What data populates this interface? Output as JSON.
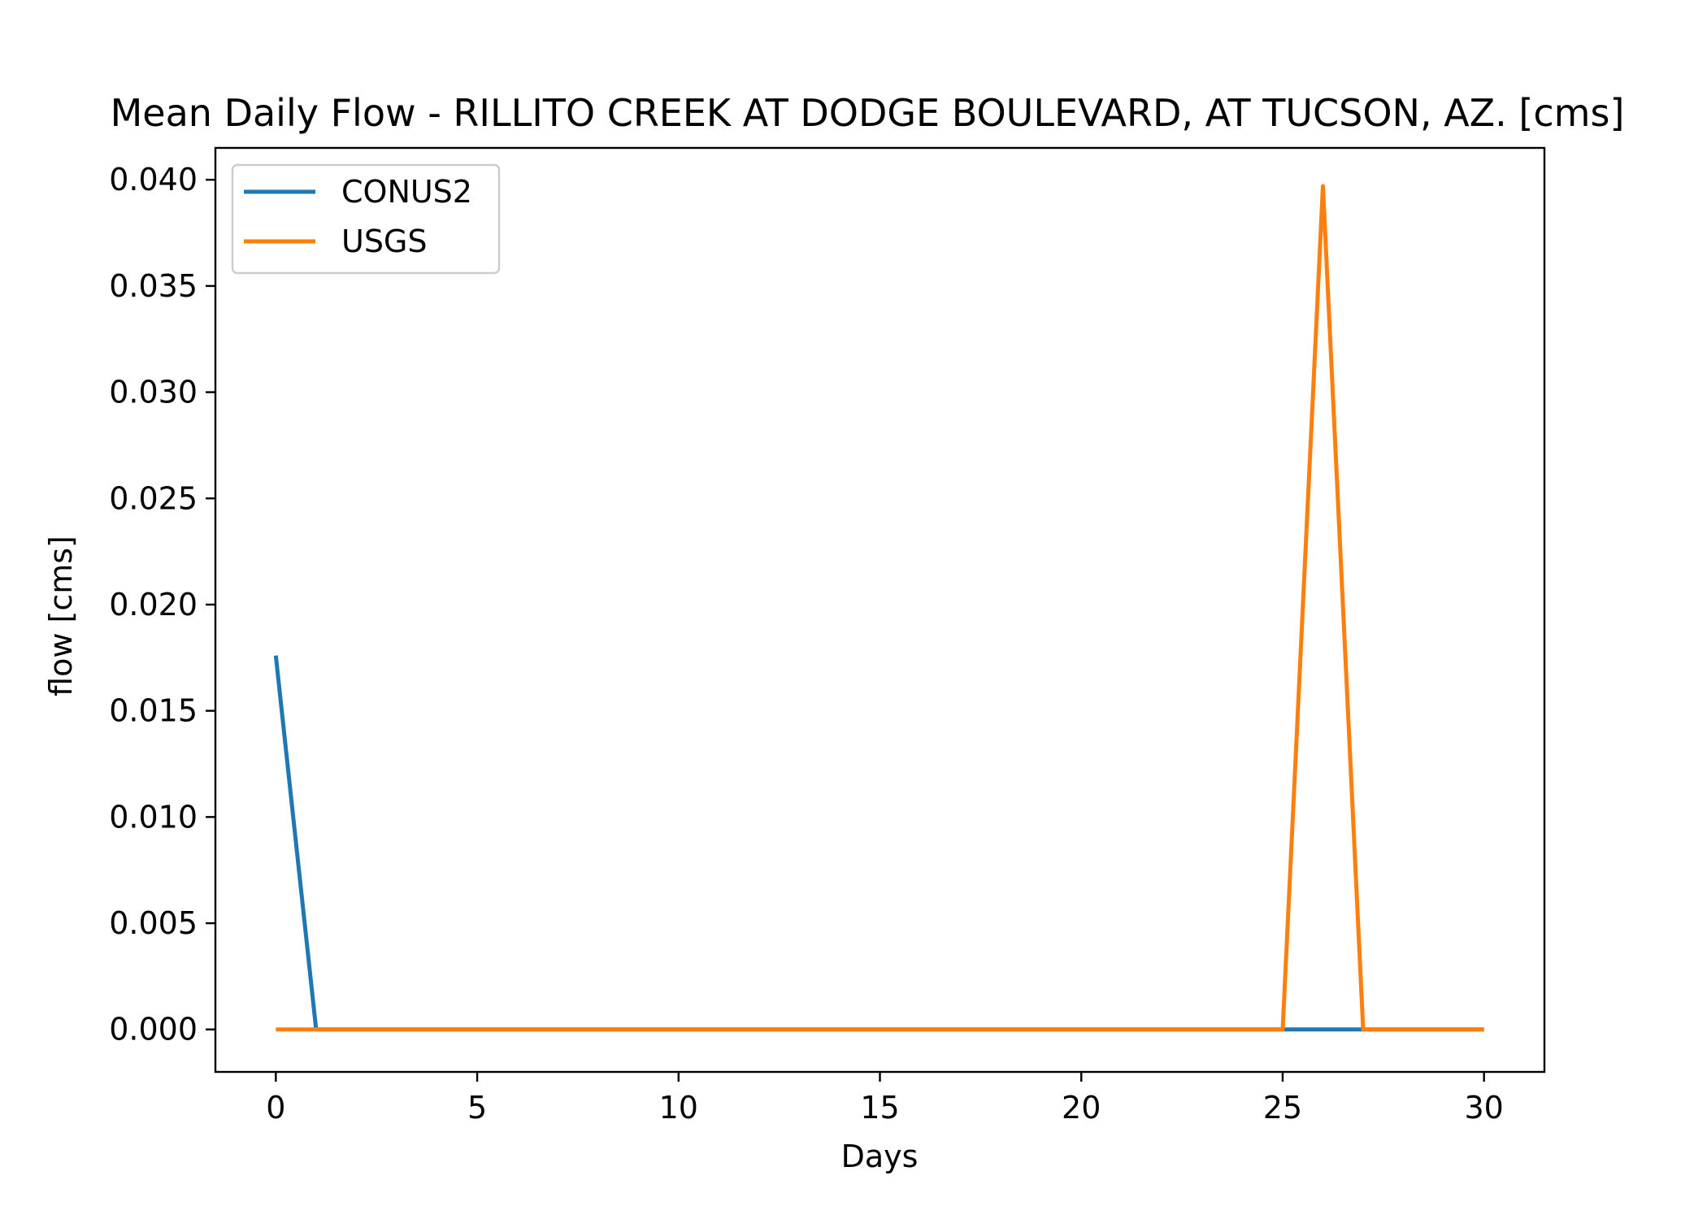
{
  "chart_data": {
    "type": "line",
    "title": "Mean Daily Flow - RILLITO CREEK AT DODGE BOULEVARD, AT TUCSON, AZ. [cms]",
    "xlabel": "Days",
    "ylabel": "flow [cms]",
    "xlim": [
      -1.5,
      31.5
    ],
    "ylim": [
      -0.002,
      0.0415
    ],
    "xticks": [
      0,
      5,
      10,
      15,
      20,
      25,
      30
    ],
    "xtick_labels": [
      "0",
      "5",
      "10",
      "15",
      "20",
      "25",
      "30"
    ],
    "yticks": [
      0.0,
      0.005,
      0.01,
      0.015,
      0.02,
      0.025,
      0.03,
      0.035,
      0.04
    ],
    "ytick_labels": [
      "0.000",
      "0.005",
      "0.010",
      "0.015",
      "0.020",
      "0.025",
      "0.030",
      "0.035",
      "0.040"
    ],
    "grid": false,
    "legend_position": "top-left",
    "x": [
      0,
      1,
      2,
      3,
      4,
      5,
      6,
      7,
      8,
      9,
      10,
      11,
      12,
      13,
      14,
      15,
      16,
      17,
      18,
      19,
      20,
      21,
      22,
      23,
      24,
      25,
      26,
      27,
      28,
      29,
      30
    ],
    "series": [
      {
        "name": "CONUS2",
        "color": "#1f77b4",
        "values": [
          0.0176,
          0,
          0,
          0,
          0,
          0,
          0,
          0,
          0,
          0,
          0,
          0,
          0,
          0,
          0,
          0,
          0,
          0,
          0,
          0,
          0,
          0,
          0,
          0,
          0,
          0,
          0,
          0,
          0,
          0,
          0
        ]
      },
      {
        "name": "USGS",
        "color": "#ff7f0e",
        "values": [
          0,
          0,
          0,
          0,
          0,
          0,
          0,
          0,
          0,
          0,
          0,
          0,
          0,
          0,
          0,
          0,
          0,
          0,
          0,
          0,
          0,
          0,
          0,
          0,
          0,
          0,
          0.0397,
          0,
          0,
          0,
          0
        ]
      }
    ]
  }
}
